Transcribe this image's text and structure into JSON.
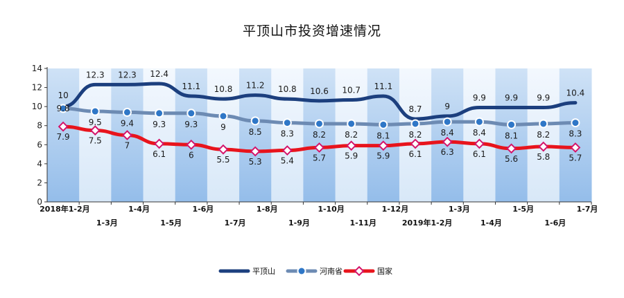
{
  "chart_data": {
    "type": "line",
    "title": "平顶山市投资增速情况",
    "categories": [
      "2018年1-2月",
      "1-3月",
      "1-4月",
      "1-5月",
      "1-6月",
      "1-7月",
      "1-8月",
      "1-9月",
      "1-10月",
      "1-11月",
      "1-12月",
      "2019年1-2月",
      "1-3月",
      "1-4月",
      "1-5月",
      "1-6月",
      "1-7月"
    ],
    "ylim": [
      0,
      14
    ],
    "yticks": [
      0,
      2,
      4,
      6,
      8,
      10,
      12,
      14
    ],
    "grid": false,
    "legend_position": "bottom-center",
    "series": [
      {
        "name": "平顶山",
        "color": "#1c3f7e",
        "marker": "none",
        "values": [
          10,
          12.3,
          12.3,
          12.4,
          11.1,
          10.8,
          11.2,
          10.8,
          10.6,
          10.7,
          11.1,
          8.7,
          9,
          9.9,
          9.9,
          9.9,
          10.4
        ]
      },
      {
        "name": "河南省",
        "color": "#6d8bb3",
        "marker": "circle",
        "values": [
          9.8,
          9.5,
          9.4,
          9.3,
          9.3,
          9,
          8.5,
          8.3,
          8.2,
          8.2,
          8.1,
          8.2,
          8.4,
          8.4,
          8.1,
          8.2,
          8.3
        ]
      },
      {
        "name": "国家",
        "color": "#e8141c",
        "marker": "diamond",
        "values": [
          7.9,
          7.5,
          7,
          6.1,
          6,
          5.5,
          5.3,
          5.4,
          5.7,
          5.9,
          5.9,
          6.1,
          6.3,
          6.1,
          5.6,
          5.8,
          5.7
        ]
      }
    ]
  },
  "colors": {
    "band_light": "#e6f0fb",
    "band_dark": "#a9ccf0"
  }
}
